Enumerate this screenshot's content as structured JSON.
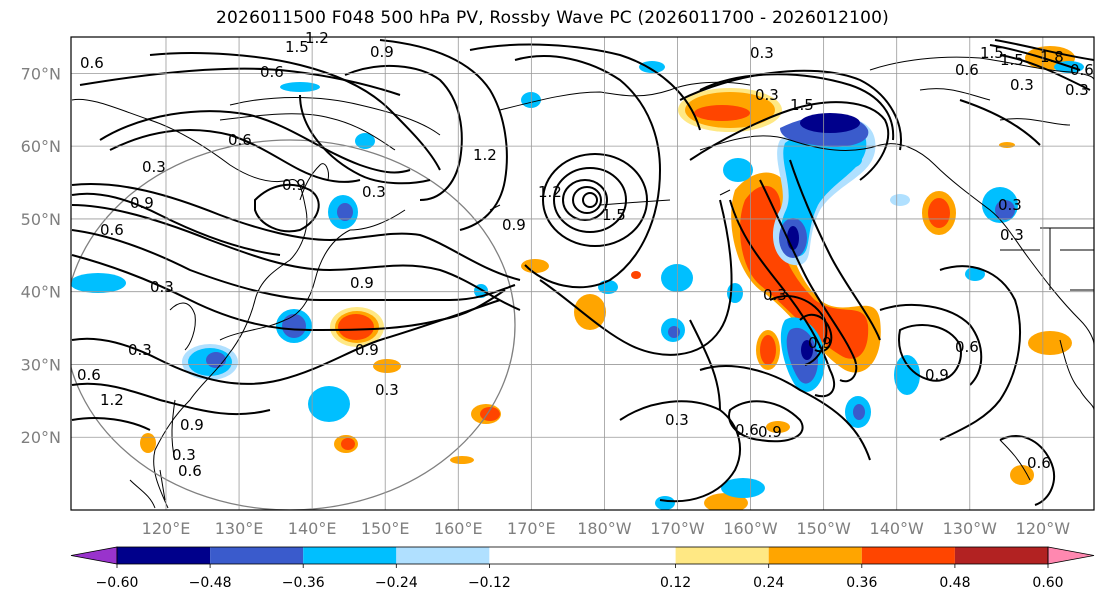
{
  "title": "2026011500 F048 500 hPa PV, Rossby Wave PC (2026011700 - 2026012100)",
  "map": {
    "lat_labels": [
      "70°N",
      "60°N",
      "50°N",
      "40°N",
      "30°N",
      "20°N"
    ],
    "lat_values": [
      70,
      60,
      50,
      40,
      30,
      20
    ],
    "lon_labels": [
      "120°E",
      "130°E",
      "140°E",
      "150°E",
      "160°E",
      "170°E",
      "180°W",
      "170°W",
      "160°W",
      "150°W",
      "140°W",
      "130°W",
      "120°W"
    ],
    "lon_values": [
      120,
      130,
      140,
      150,
      160,
      170,
      180,
      190,
      200,
      210,
      220,
      230,
      240
    ],
    "lon_range": [
      107,
      247
    ],
    "lat_range": [
      10,
      75
    ],
    "contour_labels": [
      "1.5",
      "0.9",
      "0.6",
      "0.3",
      "0.6",
      "0.3",
      "0.9",
      "0.3",
      "1.2",
      "0.3",
      "1.2",
      "0.9",
      "1.5",
      "1.5",
      "0.9",
      "0.3",
      "0.9",
      "0.6",
      "0.9",
      "0.3",
      "0.6",
      "1.2",
      "0.3",
      "0.3",
      "0.6",
      "0.9",
      "0.3",
      "0.6",
      "0.9",
      "0.9",
      "0.6",
      "0.3",
      "0.6",
      "1.5",
      "1.8",
      "0.3",
      "0.3",
      "0.6",
      "0.3",
      "0.3",
      "0.6",
      "0.9",
      "1.2",
      "1.5",
      "0.6"
    ]
  },
  "colorbar": {
    "ticks": [
      "−0.60",
      "−0.48",
      "−0.36",
      "−0.24",
      "−0.12",
      "0.12",
      "0.24",
      "0.36",
      "0.48",
      "0.60"
    ],
    "bins": [
      {
        "lo": -0.72,
        "hi": -0.6,
        "color": "#9933cc"
      },
      {
        "lo": -0.6,
        "hi": -0.48,
        "color": "#00008b"
      },
      {
        "lo": -0.48,
        "hi": -0.36,
        "color": "#3a5bcc"
      },
      {
        "lo": -0.36,
        "hi": -0.24,
        "color": "#00bfff"
      },
      {
        "lo": -0.24,
        "hi": -0.12,
        "color": "#b0e0ff"
      },
      {
        "lo": -0.12,
        "hi": 0.12,
        "color": "#ffffff"
      },
      {
        "lo": 0.12,
        "hi": 0.24,
        "color": "#ffe884"
      },
      {
        "lo": 0.24,
        "hi": 0.36,
        "color": "#ffa500"
      },
      {
        "lo": 0.36,
        "hi": 0.48,
        "color": "#ff4500"
      },
      {
        "lo": 0.48,
        "hi": 0.6,
        "color": "#b22222"
      },
      {
        "lo": 0.6,
        "hi": 0.72,
        "color": "#ff88b0"
      }
    ]
  }
}
